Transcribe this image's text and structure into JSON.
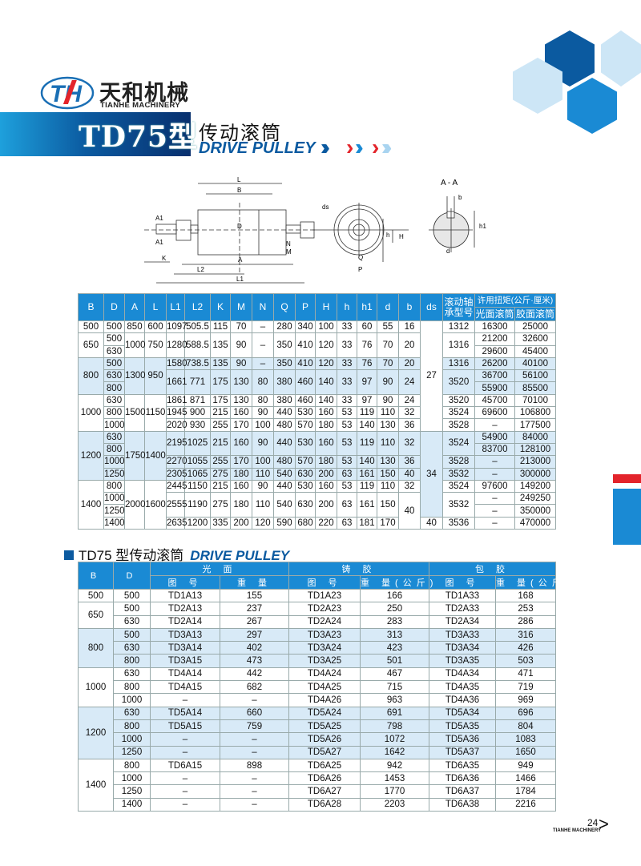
{
  "brand": {
    "cn": "天和机械",
    "en": "TIANHE MACHINERY",
    "logo_letters": "TH"
  },
  "header": {
    "model": "TD75型",
    "title_cn": "传动滚筒",
    "title_en": "DRIVE PULLEY"
  },
  "colors": {
    "primary": "#1a8ad4",
    "dark": "#0b5aa0",
    "band": "#d8eaf7",
    "accent_red": "#e3242b"
  },
  "drawing": {
    "labels": {
      "L": "L",
      "B": "B",
      "D": "D",
      "A1a": "A1",
      "A1b": "A1",
      "K": "K",
      "L2": "L2",
      "A": "A",
      "L1": "L1",
      "N": "N",
      "M": "M",
      "ds": "ds",
      "Q": "Q",
      "P": "P",
      "h": "h",
      "H": "H",
      "section": "A - A",
      "b": "b",
      "h1": "h1",
      "d": "d"
    }
  },
  "table1": {
    "headers": [
      "B",
      "D",
      "A",
      "L",
      "L1",
      "L2",
      "K",
      "M",
      "N",
      "Q",
      "P",
      "H",
      "h",
      "h1",
      "d",
      "b",
      "ds"
    ],
    "bearing_header": [
      "滚动轴",
      "承型号"
    ],
    "torque_header": "许用扭矩(公斤·厘米)",
    "torque_sub": [
      "光面滚筒",
      "胶面滚筒"
    ],
    "rows": [
      {
        "band": false,
        "cells": [
          "500",
          "500",
          "850",
          "600",
          "1097",
          "505.5",
          "115",
          "70",
          "–",
          "280",
          "340",
          "100",
          "33",
          "60",
          "55",
          "16",
          {
            "v": "27",
            "rs": 9
          },
          "1312",
          "16300",
          "25000"
        ]
      },
      {
        "band": false,
        "cells": [
          {
            "v": "650",
            "rs": 2
          },
          "500",
          {
            "v": "1000",
            "rs": 2
          },
          {
            "v": "750",
            "rs": 2
          },
          {
            "v": "1280",
            "rs": 2
          },
          {
            "v": "588.5",
            "rs": 2
          },
          {
            "v": "135",
            "rs": 2
          },
          {
            "v": "90",
            "rs": 2
          },
          {
            "v": "–",
            "rs": 2
          },
          {
            "v": "350",
            "rs": 2
          },
          {
            "v": "410",
            "rs": 2
          },
          {
            "v": "120",
            "rs": 2
          },
          {
            "v": "33",
            "rs": 2
          },
          {
            "v": "76",
            "rs": 2
          },
          {
            "v": "70",
            "rs": 2
          },
          {
            "v": "20",
            "rs": 2
          },
          {
            "v": "1316",
            "rs": 2
          },
          "21200",
          "32600"
        ]
      },
      {
        "band": false,
        "cells": [
          "630",
          "29600",
          "45400"
        ]
      },
      {
        "band": true,
        "cells": [
          {
            "v": "800",
            "rs": 3
          },
          "500",
          {
            "v": "1300",
            "rs": 3
          },
          {
            "v": "950",
            "rs": 3
          },
          "1580",
          "738.5",
          "135",
          "90",
          "–",
          "350",
          "410",
          "120",
          "33",
          "76",
          "70",
          "20",
          "1316",
          "26200",
          "40100"
        ]
      },
      {
        "band": true,
        "cells": [
          "630",
          {
            "v": "1661",
            "rs": 2
          },
          {
            "v": "771",
            "rs": 2
          },
          {
            "v": "175",
            "rs": 2
          },
          {
            "v": "130",
            "rs": 2
          },
          {
            "v": "80",
            "rs": 2
          },
          {
            "v": "380",
            "rs": 2
          },
          {
            "v": "460",
            "rs": 2
          },
          {
            "v": "140",
            "rs": 2
          },
          {
            "v": "33",
            "rs": 2
          },
          {
            "v": "97",
            "rs": 2
          },
          {
            "v": "90",
            "rs": 2
          },
          {
            "v": "24",
            "rs": 2
          },
          {
            "v": "3520",
            "rs": 2
          },
          "36700",
          "56100"
        ]
      },
      {
        "band": true,
        "cells": [
          "800",
          "55900",
          "85500"
        ]
      },
      {
        "band": false,
        "cells": [
          {
            "v": "1000",
            "rs": 3
          },
          "630",
          {
            "v": "1500",
            "rs": 3
          },
          {
            "v": "1150",
            "rs": 3
          },
          "1861",
          "871",
          "175",
          "130",
          "80",
          "380",
          "460",
          "140",
          "33",
          "97",
          "90",
          "24",
          "3520",
          "45700",
          "70100"
        ]
      },
      {
        "band": false,
        "cells": [
          "800",
          "1945",
          "900",
          "215",
          "160",
          "90",
          "440",
          "530",
          "160",
          "53",
          "119",
          "110",
          "32",
          "3524",
          "69600",
          "106800"
        ]
      },
      {
        "band": false,
        "cells": [
          "1000",
          "2020",
          "930",
          "255",
          "170",
          "100",
          "480",
          "570",
          "180",
          "53",
          "140",
          "130",
          "36",
          "3528",
          "–",
          "177500"
        ]
      },
      {
        "band": true,
        "cells": [
          {
            "v": "1200",
            "rs": 4
          },
          "630",
          {
            "v": "1750",
            "rs": 4
          },
          {
            "v": "1400",
            "rs": 4
          },
          {
            "v": "2195",
            "rs": 2
          },
          {
            "v": "1025",
            "rs": 2
          },
          {
            "v": "215",
            "rs": 2
          },
          {
            "v": "160",
            "rs": 2
          },
          {
            "v": "90",
            "rs": 2
          },
          {
            "v": "440",
            "rs": 2
          },
          {
            "v": "530",
            "rs": 2
          },
          {
            "v": "160",
            "rs": 2
          },
          {
            "v": "53",
            "rs": 2
          },
          {
            "v": "119",
            "rs": 2
          },
          {
            "v": "110",
            "rs": 2
          },
          {
            "v": "32",
            "rs": 2
          },
          {
            "v": "34",
            "rs": 7
          },
          {
            "v": "3524",
            "rs": 2
          },
          "54900",
          "84000"
        ]
      },
      {
        "band": true,
        "cells": [
          "800",
          "83700",
          "128100"
        ]
      },
      {
        "band": true,
        "cells": [
          "1000",
          "2270",
          "1055",
          "255",
          "170",
          "100",
          "480",
          "570",
          "180",
          "53",
          "140",
          "130",
          "36",
          "3528",
          "–",
          "213000"
        ]
      },
      {
        "band": true,
        "cells": [
          "1250",
          "2305",
          "1065",
          "275",
          "180",
          "110",
          "540",
          "630",
          "200",
          "63",
          "161",
          "150",
          "40",
          "3532",
          "–",
          "300000"
        ]
      },
      {
        "band": false,
        "cells": [
          {
            "v": "1400",
            "rs": 4
          },
          "800",
          {
            "v": "2000",
            "rs": 4
          },
          {
            "v": "1600",
            "rs": 4
          },
          "2445",
          "1150",
          "215",
          "160",
          "90",
          "440",
          "530",
          "160",
          "53",
          "119",
          "110",
          "32",
          "3524",
          "97600",
          "149200"
        ]
      },
      {
        "band": false,
        "cells": [
          "1000",
          {
            "v": "2555",
            "rs": 2
          },
          {
            "v": "1190",
            "rs": 2
          },
          {
            "v": "275",
            "rs": 2
          },
          {
            "v": "180",
            "rs": 2
          },
          {
            "v": "110",
            "rs": 2
          },
          {
            "v": "540",
            "rs": 2
          },
          {
            "v": "630",
            "rs": 2
          },
          {
            "v": "200",
            "rs": 2
          },
          {
            "v": "63",
            "rs": 2
          },
          {
            "v": "161",
            "rs": 2
          },
          {
            "v": "150",
            "rs": 2
          },
          {
            "v": "40",
            "rs": 3
          },
          {
            "v": "3532",
            "rs": 2
          },
          "–",
          "249250"
        ]
      },
      {
        "band": false,
        "cells": [
          "1250",
          "–",
          "350000"
        ]
      },
      {
        "band": false,
        "cells": [
          "1400",
          "2635",
          "1200",
          "335",
          "200",
          "120",
          "590",
          "680",
          "220",
          "63",
          "181",
          "170",
          "40",
          "3536",
          "–",
          "470000"
        ]
      }
    ]
  },
  "table2": {
    "title_cn": "TD75 型传动滚筒",
    "title_en": "DRIVE PULLEY",
    "headers": {
      "B": "B",
      "D": "D",
      "groups": [
        "光 面",
        "铸 胶",
        "包 胶"
      ],
      "sub": [
        "图 号",
        "重 量",
        "图 号",
        "重 量(公斤)",
        "图 号",
        "重 量(公斤)"
      ]
    },
    "groups": [
      {
        "B": "500",
        "band": false,
        "rows": [
          [
            "500",
            "TD1A13",
            "155",
            "TD1A23",
            "166",
            "TD1A33",
            "168"
          ]
        ]
      },
      {
        "B": "650",
        "band": false,
        "rows": [
          [
            "500",
            "TD2A13",
            "237",
            "TD2A23",
            "250",
            "TD2A33",
            "253"
          ],
          [
            "630",
            "TD2A14",
            "267",
            "TD2A24",
            "283",
            "TD2A34",
            "286"
          ]
        ]
      },
      {
        "B": "800",
        "band": true,
        "rows": [
          [
            "500",
            "TD3A13",
            "297",
            "TD3A23",
            "313",
            "TD3A33",
            "316"
          ],
          [
            "630",
            "TD3A14",
            "402",
            "TD3A24",
            "423",
            "TD3A34",
            "426"
          ],
          [
            "800",
            "TD3A15",
            "473",
            "TD3A25",
            "501",
            "TD3A35",
            "503"
          ]
        ]
      },
      {
        "B": "1000",
        "band": false,
        "rows": [
          [
            "630",
            "TD4A14",
            "442",
            "TD4A24",
            "467",
            "TD4A34",
            "471"
          ],
          [
            "800",
            "TD4A15",
            "682",
            "TD4A25",
            "715",
            "TD4A35",
            "719"
          ],
          [
            "1000",
            "–",
            "–",
            "TD4A26",
            "963",
            "TD4A36",
            "969"
          ]
        ]
      },
      {
        "B": "1200",
        "band": true,
        "rows": [
          [
            "630",
            "TD5A14",
            "660",
            "TD5A24",
            "691",
            "TD5A34",
            "696"
          ],
          [
            "800",
            "TD5A15",
            "759",
            "TD5A25",
            "798",
            "TD5A35",
            "804"
          ],
          [
            "1000",
            "–",
            "–",
            "TD5A26",
            "1072",
            "TD5A36",
            "1083"
          ],
          [
            "1250",
            "–",
            "–",
            "TD5A27",
            "1642",
            "TD5A37",
            "1650"
          ]
        ]
      },
      {
        "B": "1400",
        "band": false,
        "rows": [
          [
            "800",
            "TD6A15",
            "898",
            "TD6A25",
            "942",
            "TD6A35",
            "949"
          ],
          [
            "1000",
            "–",
            "–",
            "TD6A26",
            "1453",
            "TD6A36",
            "1466"
          ],
          [
            "1250",
            "–",
            "–",
            "TD6A27",
            "1770",
            "TD6A37",
            "1784"
          ],
          [
            "1400",
            "–",
            "–",
            "TD6A28",
            "2203",
            "TD6A38",
            "2216"
          ]
        ]
      }
    ]
  },
  "footer": {
    "page": "24",
    "brand": "TIANHE MACHINERY",
    "next_icon": "chevron-right-icon"
  }
}
